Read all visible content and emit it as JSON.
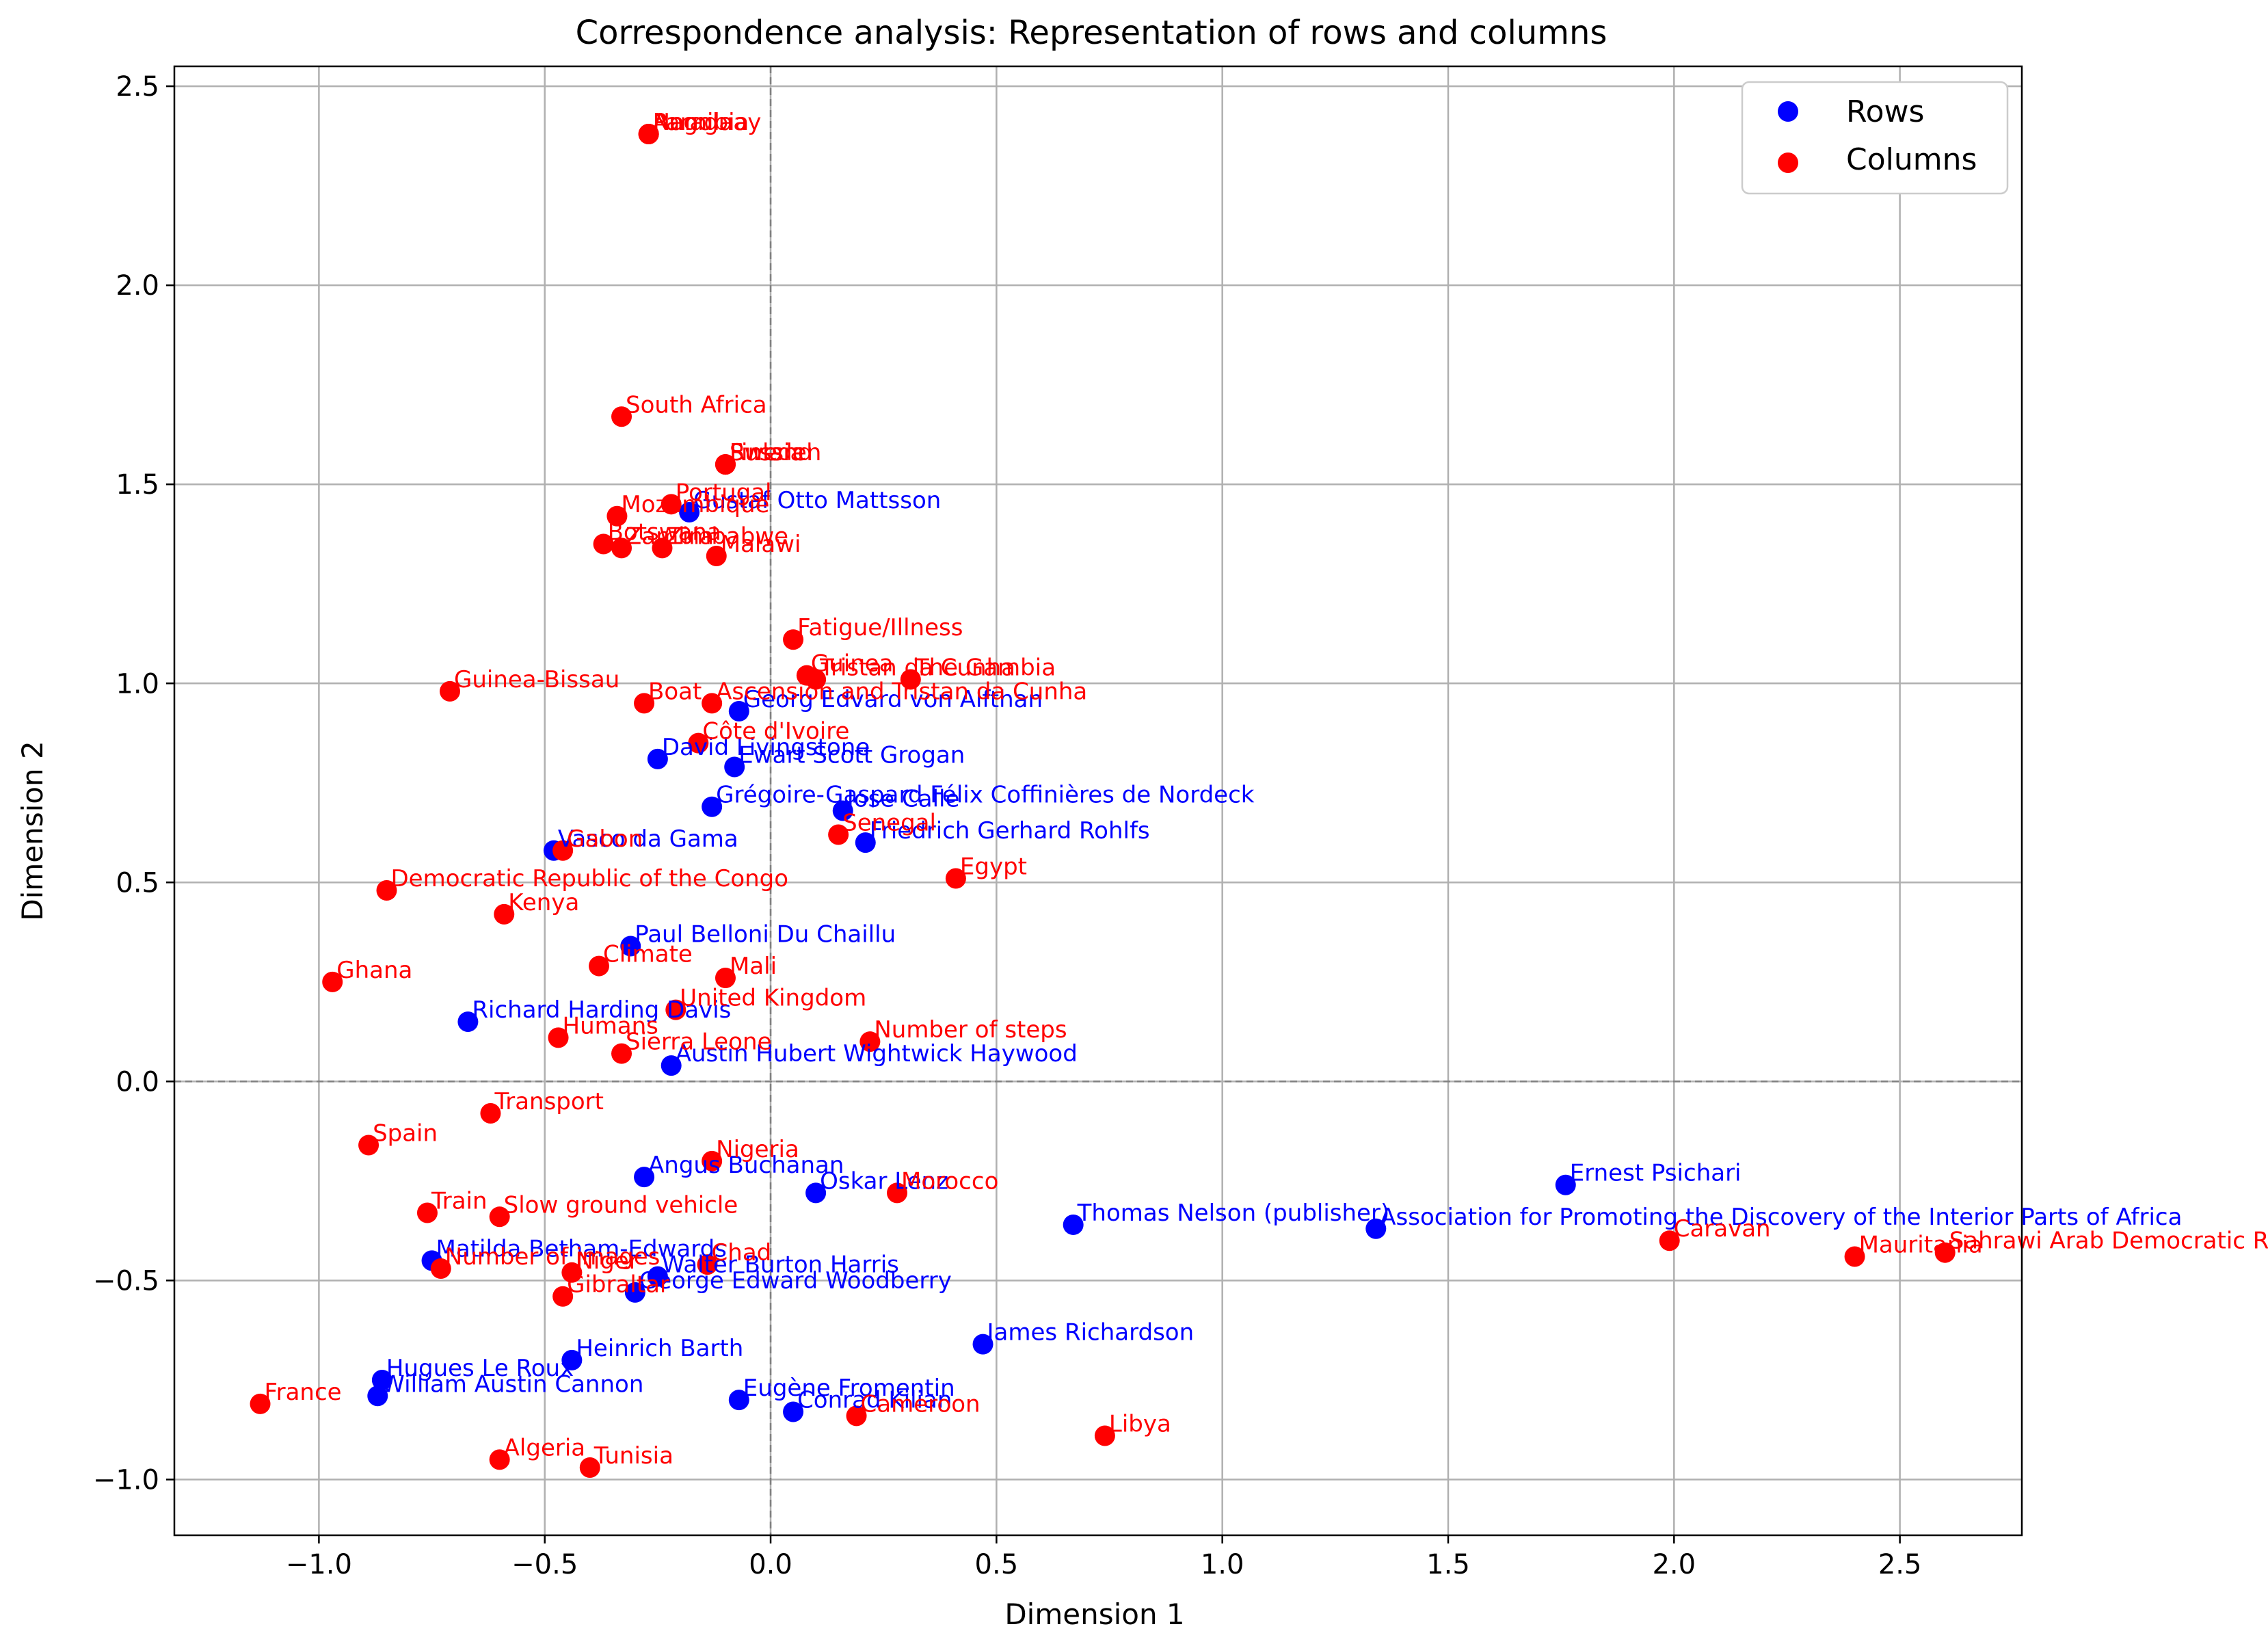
{
  "chart_data": {
    "type": "scatter",
    "title": "Correspondence analysis: Representation of rows and columns",
    "xlabel": "Dimension 1",
    "ylabel": "Dimension 2",
    "xlim": [
      -1.32,
      2.77
    ],
    "ylim": [
      -1.14,
      2.55
    ],
    "xticks": [
      -1.0,
      -0.5,
      0.0,
      0.5,
      1.0,
      1.5,
      2.0,
      2.5
    ],
    "yticks": [
      -1.0,
      -0.5,
      0.0,
      0.5,
      1.0,
      1.5,
      2.0,
      2.5
    ],
    "xtick_labels": [
      "−1.0",
      "−0.5",
      "0.0",
      "0.5",
      "1.0",
      "1.5",
      "2.0",
      "2.5"
    ],
    "ytick_labels": [
      "−1.0",
      "−0.5",
      "0.0",
      "0.5",
      "1.0",
      "1.5",
      "2.0",
      "2.5"
    ],
    "grid": true,
    "legend_position": "top-right",
    "colors": {
      "rows": "#0000ff",
      "columns": "#ff0000"
    },
    "series": [
      {
        "name": "Rows",
        "color": "#0000ff",
        "points": [
          {
            "x": -0.18,
            "y": 1.43,
            "label": "Gustaf Otto Mattsson"
          },
          {
            "x": -0.07,
            "y": 0.93,
            "label": "Georg Edvard von Alfthan"
          },
          {
            "x": -0.25,
            "y": 0.81,
            "label": "David Livingstone"
          },
          {
            "x": -0.08,
            "y": 0.79,
            "label": "Ewart Scott Grogan"
          },
          {
            "x": -0.13,
            "y": 0.69,
            "label": "Grégoire-Gaspard Félix Coffinières de Nordeck"
          },
          {
            "x": 0.16,
            "y": 0.68,
            "label": "Jose Calle"
          },
          {
            "x": 0.21,
            "y": 0.6,
            "label": "Friedrich Gerhard Rohlfs"
          },
          {
            "x": -0.48,
            "y": 0.58,
            "label": "Vasco da Gama"
          },
          {
            "x": -0.31,
            "y": 0.34,
            "label": "Paul Belloni Du Chaillu"
          },
          {
            "x": -0.67,
            "y": 0.15,
            "label": "Richard Harding Davis"
          },
          {
            "x": -0.22,
            "y": 0.04,
            "label": "Austin Hubert Wightwick Haywood"
          },
          {
            "x": 1.76,
            "y": -0.26,
            "label": "Ernest Psichari"
          },
          {
            "x": -0.28,
            "y": -0.24,
            "label": "Angus Buchanan"
          },
          {
            "x": 0.1,
            "y": -0.28,
            "label": "Oskar Lenz"
          },
          {
            "x": 0.67,
            "y": -0.36,
            "label": "Thomas Nelson (publisher)"
          },
          {
            "x": 1.34,
            "y": -0.37,
            "label": "Association for Promoting the Discovery of the Interior Parts of Africa"
          },
          {
            "x": -0.75,
            "y": -0.45,
            "label": "Matilda Betham-Edwards"
          },
          {
            "x": -0.25,
            "y": -0.49,
            "label": "Walter Burton Harris"
          },
          {
            "x": -0.3,
            "y": -0.53,
            "label": "George Edward Woodberry"
          },
          {
            "x": 0.47,
            "y": -0.66,
            "label": "James Richardson"
          },
          {
            "x": -0.44,
            "y": -0.7,
            "label": "Heinrich Barth"
          },
          {
            "x": -0.86,
            "y": -0.75,
            "label": "Hugues Le Roux"
          },
          {
            "x": -0.87,
            "y": -0.79,
            "label": "William Austin Cannon"
          },
          {
            "x": -0.07,
            "y": -0.8,
            "label": "Eugène Fromentin"
          },
          {
            "x": 0.05,
            "y": -0.83,
            "label": "Conrad Kilian"
          }
        ]
      },
      {
        "name": "Columns",
        "color": "#ff0000",
        "points": [
          {
            "x": -0.27,
            "y": 2.38,
            "label": "Paraguay"
          },
          {
            "x": -0.27,
            "y": 2.38,
            "label": "Angola"
          },
          {
            "x": -0.27,
            "y": 2.38,
            "label": "Namibia"
          },
          {
            "x": -0.33,
            "y": 1.67,
            "label": "South Africa"
          },
          {
            "x": -0.1,
            "y": 1.55,
            "label": "Russia"
          },
          {
            "x": -0.1,
            "y": 1.55,
            "label": "Sweden"
          },
          {
            "x": -0.1,
            "y": 1.55,
            "label": "Finland"
          },
          {
            "x": -0.22,
            "y": 1.45,
            "label": "Portugal"
          },
          {
            "x": -0.34,
            "y": 1.42,
            "label": "Mozambique"
          },
          {
            "x": -0.37,
            "y": 1.35,
            "label": "Botswana"
          },
          {
            "x": -0.33,
            "y": 1.34,
            "label": "Zambia"
          },
          {
            "x": -0.24,
            "y": 1.34,
            "label": "Zimbabwe"
          },
          {
            "x": -0.12,
            "y": 1.32,
            "label": "Malawi"
          },
          {
            "x": 0.05,
            "y": 1.11,
            "label": "Fatigue/Illness"
          },
          {
            "x": 0.08,
            "y": 1.02,
            "label": "Guinea"
          },
          {
            "x": 0.1,
            "y": 1.01,
            "label": "Tristan da Cunha"
          },
          {
            "x": 0.31,
            "y": 1.01,
            "label": "The Gambia"
          },
          {
            "x": -0.71,
            "y": 0.98,
            "label": "Guinea-Bissau"
          },
          {
            "x": -0.28,
            "y": 0.95,
            "label": "Boat"
          },
          {
            "x": -0.13,
            "y": 0.95,
            "label": "Ascension and Tristan da Cunha"
          },
          {
            "x": -0.16,
            "y": 0.85,
            "label": "Côte d'Ivoire"
          },
          {
            "x": 0.15,
            "y": 0.62,
            "label": "Senegal"
          },
          {
            "x": 0.41,
            "y": 0.51,
            "label": "Egypt"
          },
          {
            "x": -0.46,
            "y": 0.58,
            "label": "Gabon"
          },
          {
            "x": -0.85,
            "y": 0.48,
            "label": "Democratic Republic of the Congo"
          },
          {
            "x": -0.59,
            "y": 0.42,
            "label": "Kenya"
          },
          {
            "x": -0.97,
            "y": 0.25,
            "label": "Ghana"
          },
          {
            "x": -0.38,
            "y": 0.29,
            "label": "Climate"
          },
          {
            "x": -0.1,
            "y": 0.26,
            "label": "Mali"
          },
          {
            "x": -0.21,
            "y": 0.18,
            "label": "United Kingdom"
          },
          {
            "x": -0.47,
            "y": 0.11,
            "label": "Humans"
          },
          {
            "x": 0.22,
            "y": 0.1,
            "label": "Number of steps"
          },
          {
            "x": -0.33,
            "y": 0.07,
            "label": "Sierra Leone"
          },
          {
            "x": -0.62,
            "y": -0.08,
            "label": "Transport"
          },
          {
            "x": -0.89,
            "y": -0.16,
            "label": "Spain"
          },
          {
            "x": -0.13,
            "y": -0.2,
            "label": "Nigeria"
          },
          {
            "x": 0.28,
            "y": -0.28,
            "label": "Morocco"
          },
          {
            "x": -0.76,
            "y": -0.33,
            "label": "Train"
          },
          {
            "x": -0.6,
            "y": -0.34,
            "label": "Slow ground vehicle"
          },
          {
            "x": 1.99,
            "y": -0.4,
            "label": "Caravan"
          },
          {
            "x": 2.4,
            "y": -0.44,
            "label": "Mauritania"
          },
          {
            "x": 2.6,
            "y": -0.43,
            "label": "Sahrawi Arab Democratic Republic"
          },
          {
            "x": -0.73,
            "y": -0.47,
            "label": "Number of images"
          },
          {
            "x": -0.44,
            "y": -0.48,
            "label": "Niger"
          },
          {
            "x": -0.14,
            "y": -0.46,
            "label": "Chad"
          },
          {
            "x": -0.46,
            "y": -0.54,
            "label": "Gibraltar"
          },
          {
            "x": 0.19,
            "y": -0.84,
            "label": "Cameroon"
          },
          {
            "x": 0.74,
            "y": -0.89,
            "label": "Libya"
          },
          {
            "x": -1.13,
            "y": -0.81,
            "label": "France"
          },
          {
            "x": -0.6,
            "y": -0.95,
            "label": "Algeria"
          },
          {
            "x": -0.4,
            "y": -0.97,
            "label": "Tunisia"
          }
        ]
      }
    ]
  }
}
